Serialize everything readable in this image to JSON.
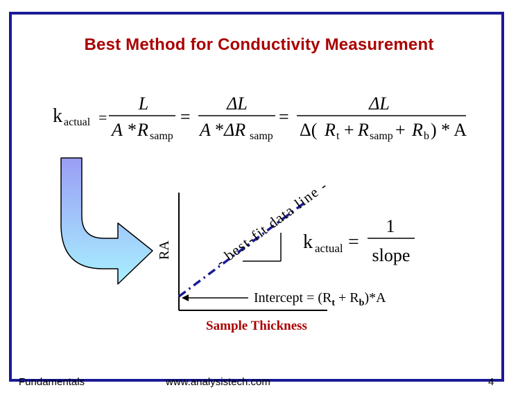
{
  "title": "Best Method for Conductivity Measurement",
  "equation": {
    "k": "k",
    "k_sub": "actual",
    "eq": "=",
    "frac1_num": "L",
    "frac1_den_A": "A",
    "frac1_den_star": "*",
    "frac1_den_R": "R",
    "frac1_den_R_sub": "samp",
    "frac2_num": "ΔL",
    "frac2_den_A": "A",
    "frac2_den_star": "*",
    "frac2_den_R": "ΔR",
    "frac2_den_R_sub": "samp",
    "frac3_num": "ΔL",
    "frac3_den_open": "Δ(",
    "frac3_den_Rt": "R",
    "frac3_den_Rt_sub": "t",
    "frac3_den_plus1": "+",
    "frac3_den_Rs": "R",
    "frac3_den_Rs_sub": "samp",
    "frac3_den_plus2": "+",
    "frac3_den_Rb": "R",
    "frac3_den_Rb_sub": "b",
    "frac3_den_close": ") * A"
  },
  "diagram": {
    "y_axis_label": "RA",
    "x_axis_label": "Sample Thickness",
    "line_label": "- best-fit data line -",
    "slope_k": "k",
    "slope_k_sub": "actual",
    "slope_eq": "=",
    "slope_num": "1",
    "slope_den": "slope",
    "intercept_text": "Intercept = (R",
    "intercept_sub_t": "t",
    "intercept_plus": " + R",
    "intercept_sub_b": "b",
    "intercept_end": ")*A"
  },
  "colors": {
    "border": "#1a1a96",
    "title": "#aa0000",
    "x_label": "#aa0000",
    "fit_line": "#1a1a96",
    "arrow_top": "#9a9ef5",
    "arrow_bottom": "#a8f0ff"
  },
  "footer": {
    "left": "Fundamentals",
    "center": "www.analysistech.com",
    "page": "4"
  }
}
